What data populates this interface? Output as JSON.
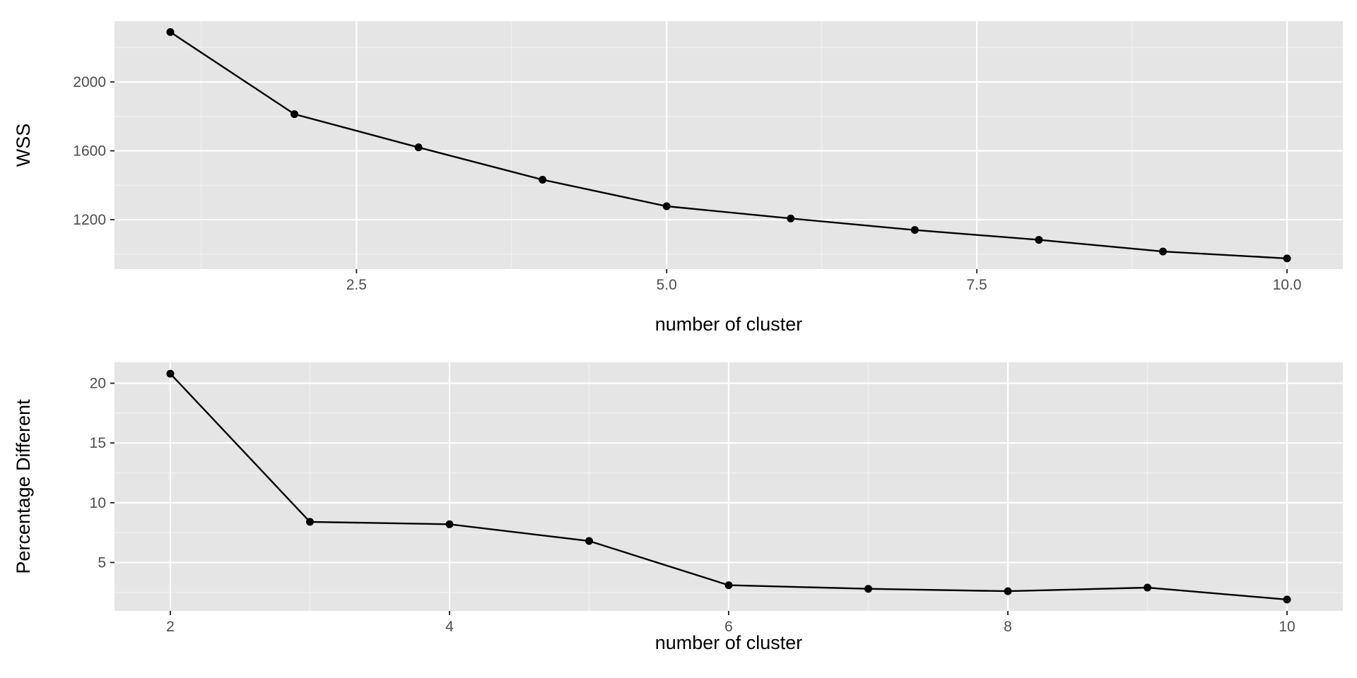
{
  "chart_data": [
    {
      "type": "line",
      "title": "",
      "xlabel": "number of cluster",
      "ylabel": "WSS",
      "x": [
        1,
        2,
        3,
        4,
        5,
        6,
        7,
        8,
        9,
        10
      ],
      "series": [
        {
          "values": [
            2290,
            1813,
            1620,
            1432,
            1278,
            1207,
            1140,
            1083,
            1015,
            975
          ]
        }
      ],
      "xlim": [
        0.55,
        10.45
      ],
      "ylim": [
        913,
        2353
      ],
      "xticks": [
        2.5,
        5.0,
        7.5,
        10.0
      ],
      "xtick_labels": [
        "2.5",
        "5.0",
        "7.5",
        "10.0"
      ],
      "xminor": [
        1.25,
        3.75,
        6.25,
        8.75
      ],
      "yticks": [
        1200,
        1600,
        2000
      ],
      "ytick_labels": [
        "1200",
        "1600",
        "2000"
      ],
      "yminor": [
        1000,
        1400,
        1800,
        2200
      ],
      "grid": true,
      "panel_color": "#e5e5e5",
      "line_color": "#000000"
    },
    {
      "type": "line",
      "title": "",
      "xlabel": "number of cluster",
      "ylabel": "Percentage Different",
      "x": [
        2,
        3,
        4,
        5,
        6,
        7,
        8,
        9,
        10
      ],
      "series": [
        {
          "values": [
            20.8,
            8.4,
            8.2,
            6.8,
            3.1,
            2.8,
            2.6,
            2.9,
            1.9
          ]
        }
      ],
      "xlim": [
        1.6,
        10.4
      ],
      "ylim": [
        0.95,
        21.75
      ],
      "xticks": [
        2,
        4,
        6,
        8,
        10
      ],
      "xtick_labels": [
        "2",
        "4",
        "6",
        "8",
        "10"
      ],
      "xminor": [
        3,
        5,
        7,
        9
      ],
      "yticks": [
        5,
        10,
        15,
        20
      ],
      "ytick_labels": [
        "5",
        "10",
        "15",
        "20"
      ],
      "yminor": [
        2.5,
        7.5,
        12.5,
        17.5
      ],
      "grid": true,
      "panel_color": "#e5e5e5",
      "line_color": "#000000"
    }
  ]
}
